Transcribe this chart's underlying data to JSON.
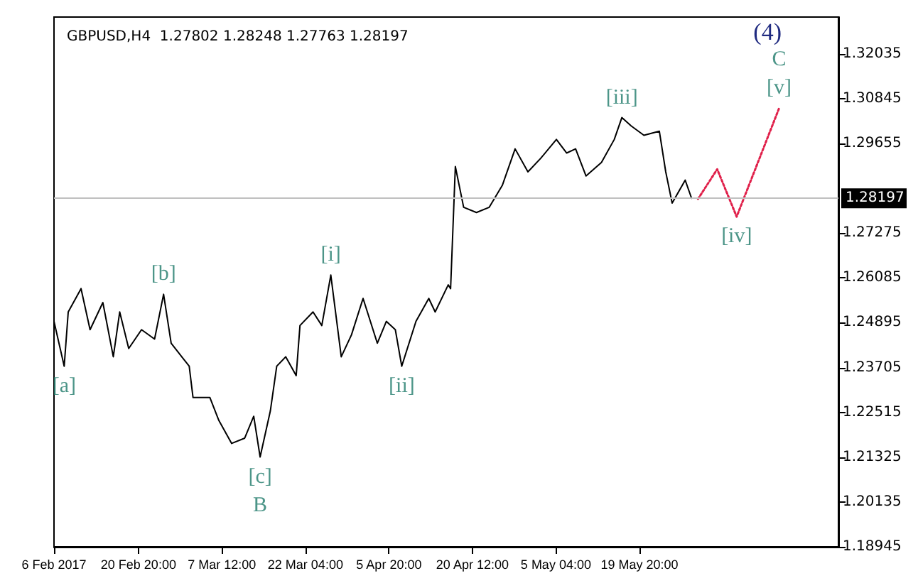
{
  "chart_data": {
    "type": "line",
    "title": "GBPUSD,H4  1.27802 1.28248 1.27763 1.28197",
    "series": [
      {
        "color": "#000000",
        "x": [
          "2017-02-06T00:00",
          "2017-02-07T19:00",
          "2017-02-08T12:00",
          "2017-02-10T18:00",
          "2017-02-12T08:00",
          "2017-02-14T14:00",
          "2017-02-16T10:00",
          "2017-02-17T13:00",
          "2017-02-19T03:00",
          "2017-02-21T09:00",
          "2017-02-23T16:00",
          "2017-02-25T06:00",
          "2017-02-26T14:00",
          "2017-03-01T18:00",
          "2017-03-02T10:00",
          "2017-03-05T09:00",
          "2017-03-06T23:00",
          "2017-03-09T05:00",
          "2017-03-11T12:00",
          "2017-03-13T02:00",
          "2017-03-14T05:00",
          "2017-03-16T00:00",
          "2017-03-17T03:00",
          "2017-03-18T17:00",
          "2017-03-20T13:00",
          "2017-03-21T05:00",
          "2017-03-23T12:00",
          "2017-03-25T01:00",
          "2017-03-26T15:00",
          "2017-03-28T11:00",
          "2017-03-30T06:00",
          "2017-04-01T07:00",
          "2017-04-03T19:00",
          "2017-04-05T09:00",
          "2017-04-06T23:00",
          "2017-04-08T02:00",
          "2017-04-10T14:00",
          "2017-04-12T20:00",
          "2017-04-13T23:00",
          "2017-04-16T06:00",
          "2017-04-16T16:00",
          "2017-04-17T06:00",
          "2017-04-17T12:00",
          "2017-04-18T23:00",
          "2017-04-21T05:00",
          "2017-04-23T11:00",
          "2017-04-25T18:00",
          "2017-04-28T00:00",
          "2017-04-30T06:00",
          "2017-05-02T12:00",
          "2017-05-05T06:00",
          "2017-05-07T01:00",
          "2017-05-08T15:00",
          "2017-05-10T11:00",
          "2017-05-13T04:00",
          "2017-05-15T10:00",
          "2017-05-16T18:00",
          "2017-05-18T09:00",
          "2017-05-20T15:00",
          "2017-05-23T08:00",
          "2017-05-24T11:00",
          "2017-05-25T14:00",
          "2017-05-27T21:00",
          "2017-05-29T00:00"
        ],
        "values": [
          1.2493,
          1.2374,
          1.2518,
          1.258,
          1.2471,
          1.2543,
          1.2399,
          1.2518,
          1.2421,
          1.2471,
          1.2446,
          1.2565,
          1.2435,
          1.2374,
          1.2291,
          1.2291,
          1.223,
          1.2169,
          1.2183,
          1.2241,
          1.2133,
          1.2255,
          1.2374,
          1.2399,
          1.2349,
          1.2482,
          1.2518,
          1.2482,
          1.2616,
          1.2399,
          1.2457,
          1.2554,
          1.2435,
          1.2493,
          1.2471,
          1.2374,
          1.2493,
          1.2554,
          1.2518,
          1.259,
          1.258,
          1.2807,
          1.2904,
          1.2796,
          1.2782,
          1.2796,
          1.2854,
          1.2951,
          1.289,
          1.2926,
          1.2976,
          1.294,
          1.2951,
          1.2879,
          1.2915,
          1.2976,
          1.3034,
          1.3012,
          1.2987,
          1.2998,
          1.289,
          1.2807,
          1.2868,
          1.28197
        ]
      },
      {
        "color": "#e0204a",
        "line_style": "dotted",
        "x": [
          "2017-05-30T03:00",
          "2017-06-02T12:00",
          "2017-06-05T22:00",
          "2017-06-13T09:00"
        ],
        "values": [
          1.2818,
          1.2897,
          1.2771,
          1.3059
        ]
      }
    ],
    "xlim": [
      "2017-02-06T00:00",
      "2017-06-23T19:00"
    ],
    "xticks": [
      {
        "value": "2017-02-06T00:00",
        "label": "6 Feb 2017"
      },
      {
        "value": "2017-02-20T20:00",
        "label": "20 Feb 20:00"
      },
      {
        "value": "2017-03-07T12:00",
        "label": "7 Mar 12:00"
      },
      {
        "value": "2017-03-22T04:00",
        "label": "22 Mar 04:00"
      },
      {
        "value": "2017-04-05T20:00",
        "label": "5 Apr 20:00"
      },
      {
        "value": "2017-04-20T12:00",
        "label": "20 Apr 12:00"
      },
      {
        "value": "2017-05-05T04:00",
        "label": "5 May 04:00"
      },
      {
        "value": "2017-05-19T20:00",
        "label": "19 May 20:00"
      }
    ],
    "ylim": [
      1.18945,
      1.3301
    ],
    "yticks": [
      1.18945,
      1.20135,
      1.21325,
      1.22515,
      1.23705,
      1.24895,
      1.26085,
      1.27275,
      1.30845,
      1.29655,
      1.32035
    ],
    "ref_lines": [
      {
        "axis": "y",
        "value": 1.28197,
        "label": "1.28197"
      }
    ],
    "annotations": [
      {
        "text": "[a]",
        "x": "2017-02-07T19:00",
        "y": 1.2374
      },
      {
        "text": "[b]",
        "x": "2017-02-25T06:00",
        "y": 1.2565
      },
      {
        "text": "[c]",
        "x": "2017-03-14T05:00",
        "y": 1.2133
      },
      {
        "text": "B",
        "x": "2017-03-14T05:00",
        "y": 1.2133
      },
      {
        "text": "[i]",
        "x": "2017-03-26T15:00",
        "y": 1.2616
      },
      {
        "text": "[ii]",
        "x": "2017-04-08T02:00",
        "y": 1.2374
      },
      {
        "text": "[iii]",
        "x": "2017-05-16T18:00",
        "y": 1.3034
      },
      {
        "text": "[iv]",
        "x": "2017-06-05T22:00",
        "y": 1.2771
      },
      {
        "text": "[v]",
        "x": "2017-06-13T09:00",
        "y": 1.3059
      },
      {
        "text": "C",
        "x": "2017-06-13T09:00",
        "y": 1.3059
      },
      "(4)"
    ],
    "marker": "none"
  }
}
